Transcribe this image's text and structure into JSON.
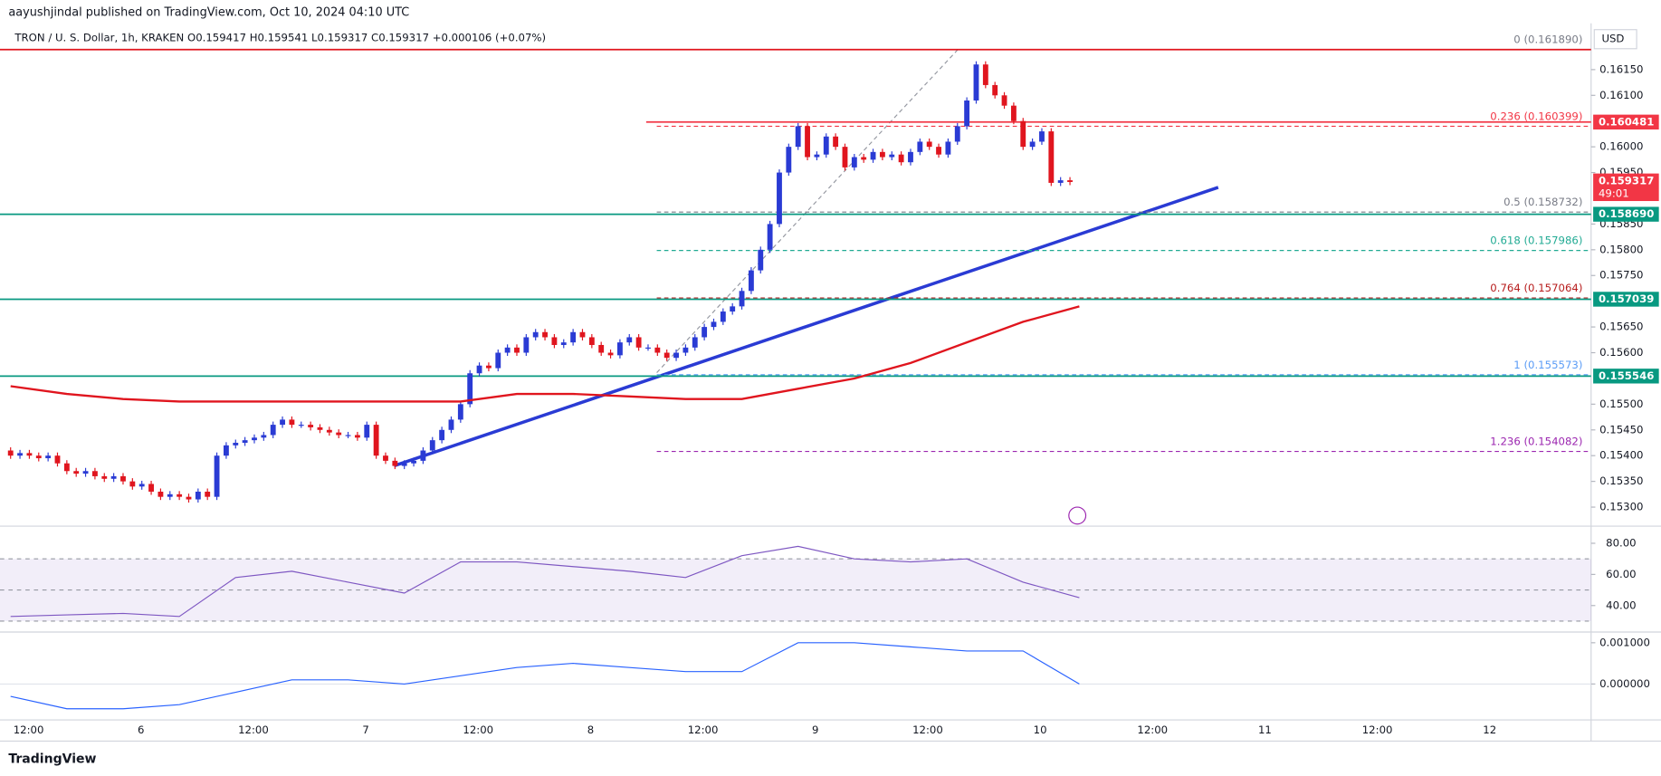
{
  "chart_data": {
    "type": "candlestick",
    "header": "aayushjindal published on TradingView.com, Oct 10, 2024 04:10 UTC",
    "legend": "TRON / U. S. Dollar, 1h, KRAKEN  O0.159417  H0.159541  L0.159317  C0.159317  +0.000106 (+0.07%)",
    "currency": "USD",
    "brand": "TradingView",
    "first_open": 0.1541,
    "close": [
      0.154,
      0.15405,
      0.154,
      0.15395,
      0.154,
      0.15385,
      0.1537,
      0.15365,
      0.1537,
      0.1536,
      0.15355,
      0.1536,
      0.1535,
      0.1534,
      0.15345,
      0.1533,
      0.1532,
      0.15325,
      0.1532,
      0.15315,
      0.1533,
      0.1532,
      0.154,
      0.1542,
      0.15425,
      0.1543,
      0.15435,
      0.1544,
      0.1546,
      0.1547,
      0.1546,
      0.1546,
      0.15455,
      0.1545,
      0.15445,
      0.1544,
      0.1544,
      0.15435,
      0.1546,
      0.154,
      0.1539,
      0.1538,
      0.15385,
      0.1539,
      0.1541,
      0.1543,
      0.1545,
      0.1547,
      0.155,
      0.1556,
      0.15575,
      0.1557,
      0.156,
      0.1561,
      0.156,
      0.1563,
      0.1564,
      0.1563,
      0.15615,
      0.1562,
      0.1564,
      0.1563,
      0.15615,
      0.156,
      0.15595,
      0.1562,
      0.1563,
      0.1561,
      0.1561,
      0.156,
      0.1559,
      0.156,
      0.1561,
      0.1563,
      0.1565,
      0.1566,
      0.1568,
      0.1569,
      0.1572,
      0.1576,
      0.158,
      0.1585,
      0.1595,
      0.16,
      0.1604,
      0.1598,
      0.15985,
      0.1602,
      0.16,
      0.1596,
      0.1598,
      0.15975,
      0.1599,
      0.1598,
      0.15985,
      0.1597,
      0.1599,
      0.1601,
      0.16,
      0.15985,
      0.1601,
      0.1604,
      0.1609,
      0.1616,
      0.1612,
      0.161,
      0.1608,
      0.1605,
      0.16,
      0.1601,
      0.1603,
      0.1593,
      0.15935,
      0.159317
    ],
    "up_color": "#2a3bd4",
    "down_color": "#e0151e",
    "ma": [
      0.15535,
      0.1552,
      0.1551,
      0.15505,
      0.15505,
      0.15505,
      0.15505,
      0.15505,
      0.15505,
      0.1552,
      0.1552,
      0.15515,
      0.1551,
      0.1551,
      0.1553,
      0.1555,
      0.1558,
      0.1562,
      0.1566,
      0.1569
    ],
    "ma_color": "#e0151e",
    "ylim": [
      0.15263,
      0.1624
    ],
    "yticks": [
      {
        "value": 0.1615,
        "label": "0.16150"
      },
      {
        "value": 0.161,
        "label": "0.16100"
      },
      {
        "value": 0.16,
        "label": "0.16000"
      },
      {
        "value": 0.1595,
        "label": "0.15950"
      },
      {
        "value": 0.1585,
        "label": "0.15850"
      },
      {
        "value": 0.158,
        "label": "0.15800"
      },
      {
        "value": 0.1575,
        "label": "0.15750"
      },
      {
        "value": 0.1565,
        "label": "0.15650"
      },
      {
        "value": 0.156,
        "label": "0.15600"
      },
      {
        "value": 0.155,
        "label": "0.15500"
      },
      {
        "value": 0.1545,
        "label": "0.15450"
      },
      {
        "value": 0.154,
        "label": "0.15400"
      },
      {
        "value": 0.1535,
        "label": "0.15350"
      },
      {
        "value": 0.153,
        "label": "0.15300"
      }
    ],
    "levels": [
      {
        "value": 0.160481,
        "label": "0.160481",
        "color": "#f23645"
      },
      {
        "value": 0.15869,
        "label": "0.158690",
        "color": "#089981"
      },
      {
        "value": 0.157039,
        "label": "0.157039",
        "color": "#089981"
      },
      {
        "value": 0.155546,
        "label": "0.155546",
        "color": "#089981"
      }
    ],
    "last": {
      "value": 0.159317,
      "label": "0.159317",
      "countdown": "49:01",
      "color": "#f23645"
    },
    "fib": [
      {
        "value": 0.16189,
        "label": "0 (0.161890)",
        "color": "#787b86"
      },
      {
        "value": 0.160399,
        "label": "0.236 (0.160399)",
        "color": "#f23645"
      },
      {
        "value": 0.158732,
        "label": "0.5 (0.158732)",
        "color": "#787b86"
      },
      {
        "value": 0.157986,
        "label": "0.618 (0.157986)",
        "color": "#22ab94"
      },
      {
        "value": 0.157064,
        "label": "0.764 (0.157064)",
        "color": "#b71c1c"
      },
      {
        "value": 0.155573,
        "label": "1 (0.155573)",
        "color": "#5b9cf6"
      },
      {
        "value": 0.154082,
        "label": "1.236 (0.154082)",
        "color": "#9c27b0"
      }
    ],
    "rsi": [
      33,
      34,
      35,
      33,
      58,
      62,
      55,
      48,
      68,
      68,
      65,
      62,
      58,
      72,
      78,
      70,
      68,
      70,
      55,
      45
    ],
    "rsi_color": "#7e57c2",
    "rsi_ylim": [
      23,
      91
    ],
    "rsi_yticks": [
      {
        "value": 80,
        "label": "80.00"
      },
      {
        "value": 60,
        "label": "60.00"
      },
      {
        "value": 40,
        "label": "40.00"
      }
    ],
    "macd": [
      -0.0003,
      -0.0006,
      -0.0006,
      -0.0005,
      -0.0002,
      0.0001,
      0.0001,
      0,
      0.0002,
      0.0004,
      0.0005,
      0.0004,
      0.0003,
      0.0003,
      0.001,
      0.001,
      0.0009,
      0.0008,
      0.0008,
      0
    ],
    "macd_color": "#2962ff",
    "macd_ylim": [
      -0.00087,
      0.00126
    ],
    "macd_yticks": [
      {
        "value": 0.001,
        "label": "0.001000"
      },
      {
        "value": 0,
        "label": "0.000000"
      }
    ],
    "time_labels": [
      "12:00",
      "6",
      "12:00",
      "7",
      "12:00",
      "8",
      "12:00",
      "9",
      "12:00",
      "10",
      "12:00",
      "11",
      "12:00",
      "12"
    ]
  }
}
